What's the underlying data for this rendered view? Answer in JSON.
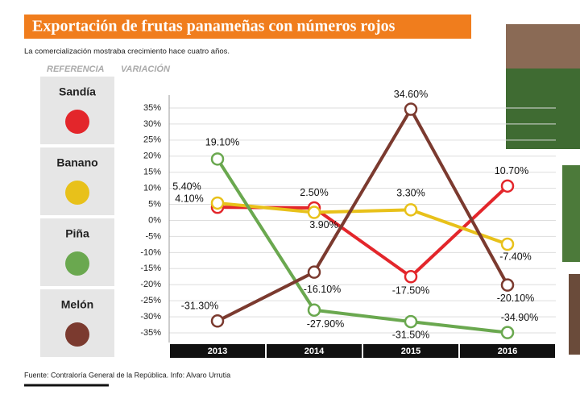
{
  "chart_data": {
    "type": "line",
    "title": "Exportación de frutas panameñas con números rojos",
    "subtitle": "La comercialización mostraba crecimiento hace cuatro años.",
    "legend_title": "REFERENCIA",
    "y_label": "VARIACIÓN",
    "source": "Fuente: Contraloría General de la República. Info: Alvaro Urrutia",
    "categories": [
      "2013",
      "2014",
      "2015",
      "2016"
    ],
    "series": [
      {
        "name": "Sandía",
        "color": "#e3262b",
        "values": [
          4.1,
          3.9,
          -17.5,
          10.7
        ],
        "value_labels": [
          "4.10%",
          "3.90%",
          "-17.50%",
          "10.70%"
        ]
      },
      {
        "name": "Banano",
        "color": "#e8c11a",
        "values": [
          5.4,
          2.5,
          3.3,
          -7.4
        ],
        "value_labels": [
          "5.40%",
          "2.50%",
          "3.30%",
          "-7.40%"
        ]
      },
      {
        "name": "Piña",
        "color": "#6aa84f",
        "values": [
          19.1,
          -27.9,
          -31.5,
          -34.9
        ],
        "value_labels": [
          "19.10%",
          "-27.90%",
          "-31.50%",
          "-34.90%"
        ]
      },
      {
        "name": "Melón",
        "color": "#7b3a2f",
        "values": [
          -31.3,
          -16.1,
          34.6,
          -20.1
        ],
        "value_labels": [
          "-31.30%",
          "-16.10%",
          "34.60%",
          "-20.10%"
        ]
      }
    ],
    "ylim": [
      -38,
      39
    ],
    "yticks": [
      {
        "value": 35,
        "label": "35%"
      },
      {
        "value": 30,
        "label": "30%"
      },
      {
        "value": 25,
        "label": "25%"
      },
      {
        "value": 20,
        "label": "20%"
      },
      {
        "value": 15,
        "label": "15%"
      },
      {
        "value": 10,
        "label": "10%"
      },
      {
        "value": 5,
        "label": "5%"
      },
      {
        "value": 0,
        "label": "0%"
      },
      {
        "value": -5,
        "label": "-5%"
      },
      {
        "value": -10,
        "label": "-10%"
      },
      {
        "value": -15,
        "label": "-15%"
      },
      {
        "value": -20,
        "label": "-20%"
      },
      {
        "value": -25,
        "label": "-25%"
      },
      {
        "value": -30,
        "label": "-30%"
      },
      {
        "value": -35,
        "label": "-35%"
      }
    ],
    "grid": true
  }
}
